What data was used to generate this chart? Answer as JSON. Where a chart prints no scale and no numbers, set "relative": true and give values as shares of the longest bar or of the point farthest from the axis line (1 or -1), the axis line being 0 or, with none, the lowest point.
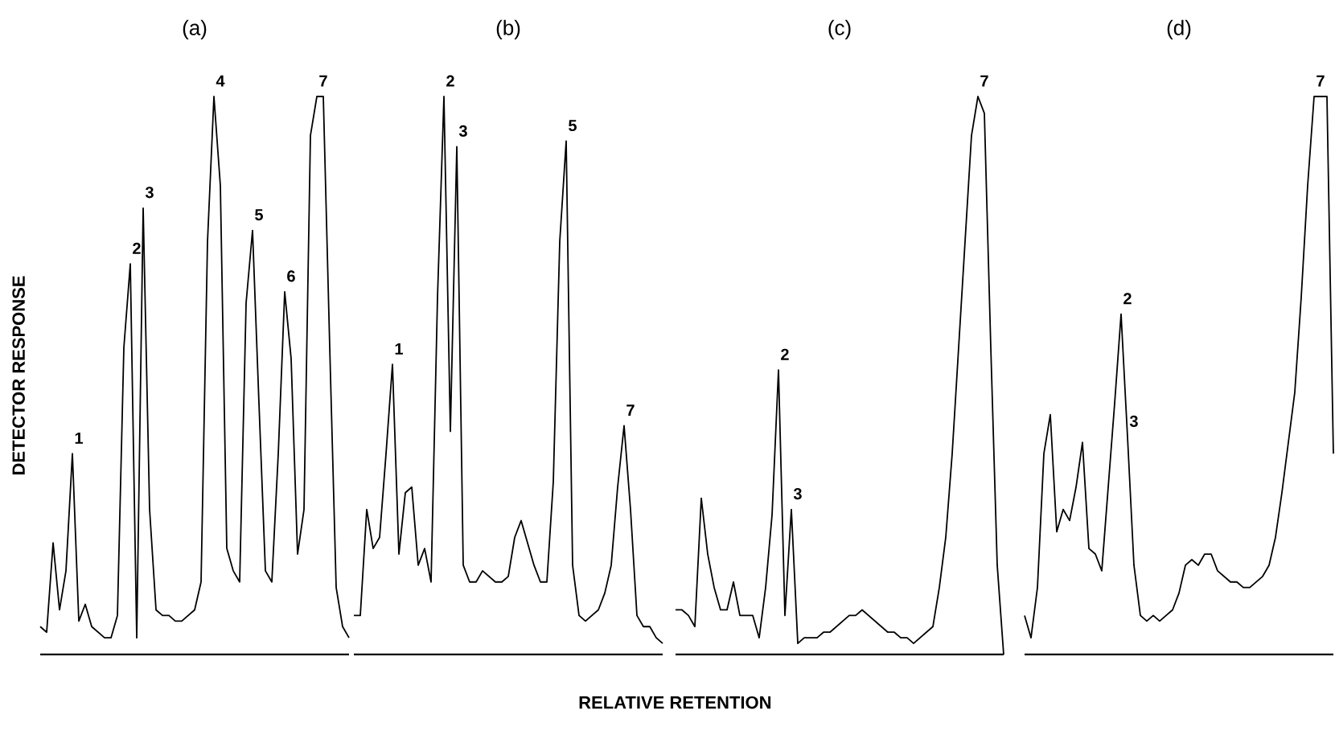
{
  "chart_data": [
    {
      "type": "line",
      "title": "(a)",
      "ylabel": "DETECTOR RESPONSE",
      "relative": true,
      "categories": [
        null,
        null,
        null,
        null,
        null,
        null,
        null,
        null,
        null,
        null,
        null,
        null,
        null,
        null,
        null,
        null,
        null,
        null,
        null,
        null,
        null,
        null,
        null,
        null,
        null,
        null,
        null,
        null,
        null,
        null,
        null,
        null,
        null,
        null,
        null,
        null,
        null,
        null,
        null,
        null,
        null,
        null,
        null,
        null,
        null,
        null,
        null,
        null,
        null
      ],
      "series": [
        {
          "color": "#000000",
          "values": [
            0.05,
            0.04,
            0.2,
            0.08,
            0.15,
            0.36,
            0.06,
            0.09,
            0.05,
            0.04,
            0.03,
            0.03,
            0.07,
            0.55,
            0.7,
            0.03,
            0.8,
            0.26,
            0.08,
            0.07,
            0.07,
            0.06,
            0.06,
            0.07,
            0.08,
            0.13,
            0.74,
            1,
            0.84,
            0.19,
            0.15,
            0.13,
            0.63,
            0.76,
            0.45,
            0.15,
            0.13,
            0.36,
            0.65,
            0.53,
            0.18,
            0.26,
            0.93,
            1,
            1,
            0.55,
            0.12,
            0.05,
            0.03
          ]
        }
      ],
      "annotations": [
        {
          "text": "1",
          "y": 0.36
        },
        {
          "text": "2",
          "y": 0.7
        },
        {
          "text": "3",
          "y": 0.8
        },
        {
          "text": "4",
          "y": 1
        },
        {
          "text": "5",
          "y": 0.76
        },
        {
          "text": "6",
          "y": 0.65
        },
        {
          "text": "7",
          "y": 1
        }
      ]
    },
    {
      "type": "line",
      "title": "(b)",
      "xlabel": "RELATIVE RETENTION",
      "relative": true,
      "categories": [
        null,
        null,
        null,
        null,
        null,
        null,
        null,
        null,
        null,
        null,
        null,
        null,
        null,
        null,
        null,
        null,
        null,
        null,
        null,
        null,
        null,
        null,
        null,
        null,
        null,
        null,
        null,
        null,
        null,
        null,
        null,
        null,
        null,
        null,
        null,
        null,
        null,
        null,
        null,
        null,
        null,
        null,
        null,
        null,
        null,
        null,
        null,
        null,
        null
      ],
      "series": [
        {
          "color": "#000000",
          "values": [
            0.07,
            0.07,
            0.26,
            0.19,
            0.21,
            0.36,
            0.52,
            0.18,
            0.29,
            0.3,
            0.16,
            0.19,
            0.13,
            0.64,
            1,
            0.4,
            0.91,
            0.16,
            0.13,
            0.13,
            0.15,
            0.14,
            0.13,
            0.13,
            0.14,
            0.21,
            0.24,
            0.2,
            0.16,
            0.13,
            0.13,
            0.31,
            0.74,
            0.92,
            0.16,
            0.07,
            0.06,
            0.07,
            0.08,
            0.11,
            0.16,
            0.3,
            0.41,
            0.26,
            0.07,
            0.05,
            0.05,
            0.03,
            0.02
          ]
        }
      ],
      "annotations": [
        {
          "text": "1",
          "y": 0.52
        },
        {
          "text": "2",
          "y": 1
        },
        {
          "text": "3",
          "y": 0.91
        },
        {
          "text": "5",
          "y": 0.92
        },
        {
          "text": "7",
          "y": 0.41
        }
      ]
    },
    {
      "type": "line",
      "title": "(c)",
      "relative": true,
      "categories": [
        null,
        null,
        null,
        null,
        null,
        null,
        null,
        null,
        null,
        null,
        null,
        null,
        null,
        null,
        null,
        null,
        null,
        null,
        null,
        null,
        null,
        null,
        null,
        null,
        null,
        null,
        null,
        null,
        null,
        null,
        null,
        null,
        null,
        null,
        null,
        null,
        null,
        null,
        null,
        null,
        null,
        null,
        null,
        null,
        null,
        null,
        null,
        null,
        null,
        null,
        null,
        null
      ],
      "series": [
        {
          "color": "#000000",
          "values": [
            0.08,
            0.08,
            0.07,
            0.05,
            0.28,
            0.18,
            0.12,
            0.08,
            0.08,
            0.13,
            0.07,
            0.07,
            0.07,
            0.03,
            0.12,
            0.25,
            0.51,
            0.07,
            0.26,
            0.02,
            0.03,
            0.03,
            0.03,
            0.04,
            0.04,
            0.05,
            0.06,
            0.07,
            0.07,
            0.08,
            0.07,
            0.06,
            0.05,
            0.04,
            0.04,
            0.03,
            0.03,
            0.02,
            0.03,
            0.04,
            0.05,
            0.12,
            0.21,
            0.36,
            0.55,
            0.74,
            0.93,
            1,
            0.97,
            0.55,
            0.16,
            0
          ]
        }
      ],
      "annotations": [
        {
          "text": "2",
          "y": 0.51
        },
        {
          "text": "3",
          "y": 0.26
        },
        {
          "text": "7",
          "y": 1
        }
      ]
    },
    {
      "type": "line",
      "title": "(d)",
      "relative": true,
      "categories": [
        null,
        null,
        null,
        null,
        null,
        null,
        null,
        null,
        null,
        null,
        null,
        null,
        null,
        null,
        null,
        null,
        null,
        null,
        null,
        null,
        null,
        null,
        null,
        null,
        null,
        null,
        null,
        null,
        null,
        null,
        null,
        null,
        null,
        null,
        null,
        null,
        null,
        null,
        null,
        null,
        null,
        null,
        null,
        null,
        null,
        null,
        null,
        null,
        null
      ],
      "series": [
        {
          "color": "#000000",
          "values": [
            0.07,
            0.03,
            0.12,
            0.36,
            0.43,
            0.22,
            0.26,
            0.24,
            0.3,
            0.38,
            0.19,
            0.18,
            0.15,
            0.3,
            0.45,
            0.61,
            0.39,
            0.16,
            0.07,
            0.06,
            0.07,
            0.06,
            0.07,
            0.08,
            0.11,
            0.16,
            0.17,
            0.16,
            0.18,
            0.18,
            0.15,
            0.14,
            0.13,
            0.13,
            0.12,
            0.12,
            0.13,
            0.14,
            0.16,
            0.21,
            0.29,
            0.38,
            0.47,
            0.64,
            0.84,
            1,
            1,
            1,
            0.36
          ]
        }
      ],
      "annotations": [
        {
          "text": "2",
          "y": 0.61
        },
        {
          "text": "3",
          "y": 0.39
        },
        {
          "text": "7",
          "y": 1
        }
      ]
    }
  ]
}
